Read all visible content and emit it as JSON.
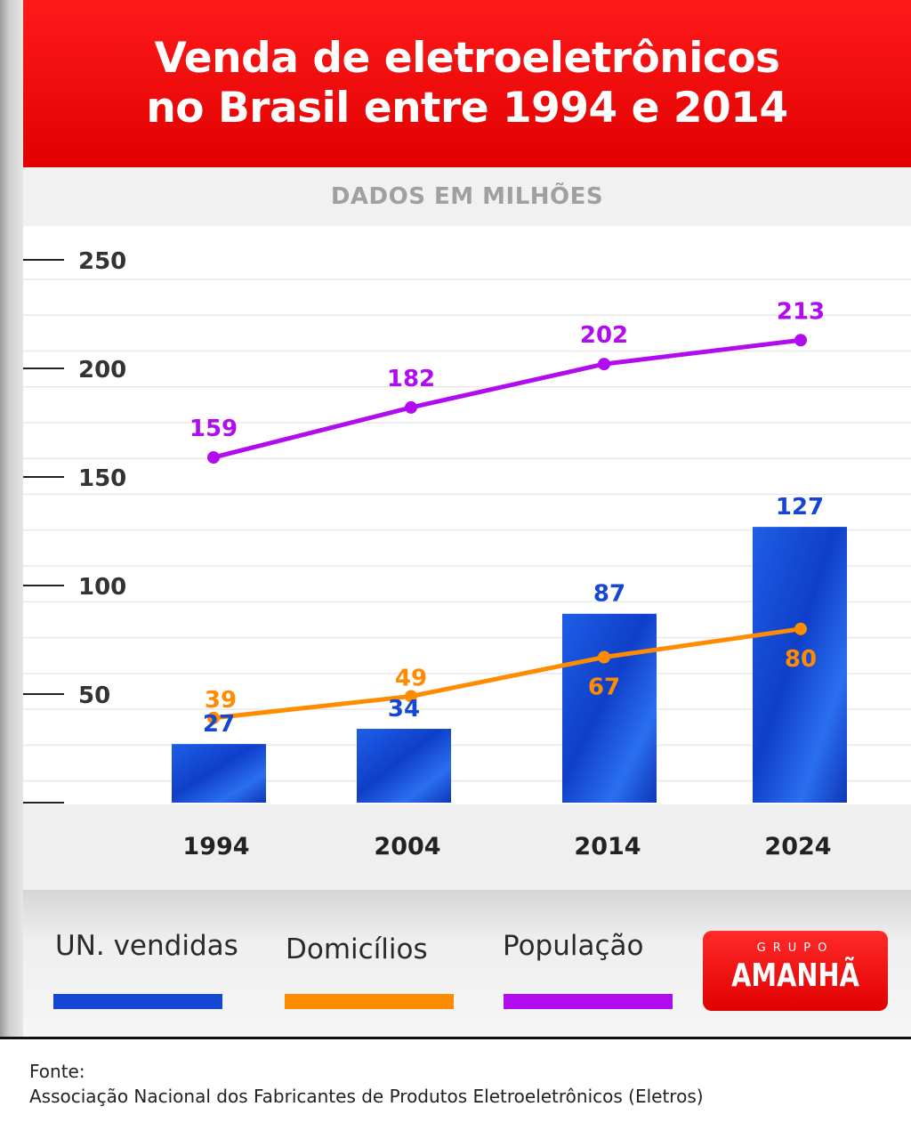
{
  "title_line1": "Venda de eletroeletrônicos",
  "title_line2": "no Brasil entre 1994 e 2014",
  "subtitle": "DADOS EM MILHÕES",
  "colors": {
    "header_red": "#e00000",
    "un_vendidas": "#1646d4",
    "domicilios": "#ff8c00",
    "populacao": "#b10cf0"
  },
  "chart_data": {
    "type": "bar",
    "categories": [
      "1994",
      "2004",
      "2014",
      "2024"
    ],
    "series": [
      {
        "name": "UN. vendidas",
        "type": "bar",
        "values": [
          27,
          34,
          87,
          127
        ],
        "color": "#1646d4"
      },
      {
        "name": "Domicílios",
        "type": "line",
        "values": [
          39,
          49,
          67,
          80
        ],
        "color": "#ff8c00"
      },
      {
        "name": "População",
        "type": "line",
        "values": [
          159,
          182,
          202,
          213
        ],
        "color": "#b10cf0"
      }
    ],
    "ylim": [
      0,
      250
    ],
    "yticks": [
      50,
      100,
      150,
      200,
      250
    ],
    "grid": true
  },
  "legend": [
    {
      "label": "UN. vendidas",
      "color": "#1646d4"
    },
    {
      "label": "Domicílios",
      "color": "#ff8c00"
    },
    {
      "label": "População",
      "color": "#b10cf0"
    }
  ],
  "logo": {
    "small": "GRUPO",
    "big": "AMANHÃ"
  },
  "source_label": "Fonte:",
  "source_text": "Associação Nacional dos Fabricantes de Produtos Eletroeletrônicos (Eletros)"
}
